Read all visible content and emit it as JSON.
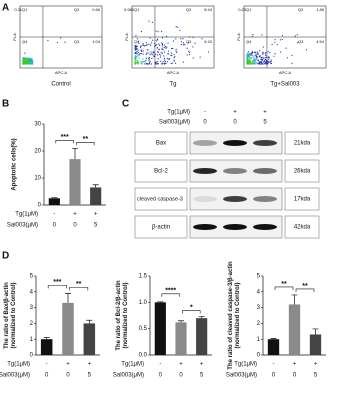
{
  "panel_labels": [
    "A",
    "B",
    "C",
    "D"
  ],
  "flow": {
    "x_label": "APC-A",
    "y_label": "PI-A",
    "plots": [
      {
        "caption": "Control",
        "quadrants": [
          {
            "name": "Q1",
            "value": "0.11"
          },
          {
            "name": "Q2",
            "value": "0.66"
          },
          {
            "name": "Q3",
            "value": "1.04"
          },
          {
            "name": "Q4"
          }
        ]
      },
      {
        "caption": "Tg",
        "quadrants": [
          {
            "name": "Q1",
            "value": "0.980"
          },
          {
            "name": "Q2",
            "value": "8.44"
          },
          {
            "name": "Q3",
            "value": "6.42"
          },
          {
            "name": "Q4"
          }
        ]
      },
      {
        "caption": "Tg+Sal003",
        "quadrants": [
          {
            "name": "Q1",
            "value": "0.23"
          },
          {
            "name": "Q2",
            "value": "1.86"
          },
          {
            "name": "Q3",
            "value": "4.54"
          },
          {
            "name": "Q4"
          }
        ]
      }
    ]
  },
  "blot": {
    "header_rows": [
      {
        "name": "Tg(1μM)",
        "labels": [
          "-",
          "+",
          "+"
        ]
      },
      {
        "name": "Sal003(μM)",
        "labels": [
          "0",
          "0",
          "5"
        ]
      }
    ],
    "bands": [
      {
        "name": "Bax",
        "size": "21kda"
      },
      {
        "name": "Bcl-2",
        "size": "26kda"
      },
      {
        "name": "cleaved caspase-3",
        "size": "17kda"
      },
      {
        "name": "β-actin",
        "size": "42kda"
      }
    ]
  },
  "chart_data": [
    {
      "type": "bar",
      "ylabel": [
        "Apoptotic cells(%)"
      ],
      "ylim": [
        0,
        30
      ],
      "yticks": [
        0,
        10,
        20,
        30
      ],
      "values": [
        2.5,
        17,
        6.5
      ],
      "errors": [
        0.2,
        4,
        1
      ],
      "colors": [
        "#111111",
        "#8a8a8a",
        "#444444"
      ],
      "group_rows": [
        {
          "name": "Tg(1μM)",
          "labels": [
            "-",
            "+",
            "+"
          ]
        },
        {
          "name": "Sal003(μM)",
          "labels": [
            "0",
            "0",
            "5"
          ]
        }
      ],
      "significance": [
        "***",
        "**"
      ]
    },
    {
      "type": "bar",
      "ylabel": [
        "The ratio of Bax/β-actin",
        "(normalized to Control)"
      ],
      "ylim": [
        0,
        5
      ],
      "yticks": [
        0,
        1,
        2,
        3,
        4,
        5
      ],
      "values": [
        1,
        3.3,
        2.0
      ],
      "errors": [
        0.1,
        0.6,
        0.2
      ],
      "colors": [
        "#111111",
        "#8a8a8a",
        "#444444"
      ],
      "group_rows": [
        {
          "name": "Tg(1μM)",
          "labels": [
            "-",
            "+",
            "+"
          ]
        },
        {
          "name": "Sal003(μM)",
          "labels": [
            "0",
            "0",
            "5"
          ]
        }
      ],
      "significance": [
        "***",
        "**"
      ]
    },
    {
      "type": "bar",
      "ylabel": [
        "The ratio of Bcl-2/β-actin",
        "(normalized to Control)"
      ],
      "ylim": [
        0,
        1.5
      ],
      "yticks": [
        {
          "value": 0,
          "label": "0.0"
        },
        0.5,
        {
          "value": 1,
          "label": "1.0"
        },
        1.5
      ],
      "values": [
        1.0,
        0.62,
        0.7
      ],
      "errors": [
        0.01,
        0.03,
        0.03
      ],
      "colors": [
        "#111111",
        "#8a8a8a",
        "#444444"
      ],
      "group_rows": [
        {
          "name": "Tg(1μM)",
          "labels": [
            "-",
            "+",
            "+"
          ]
        },
        {
          "name": "Sal003(μM)",
          "labels": [
            "0",
            "0",
            "5"
          ]
        }
      ],
      "significance": [
        "****",
        "*"
      ]
    },
    {
      "type": "bar",
      "ylabel": [
        "The ratio of cleaved caspase-3/β-actin",
        "(normalized to Control)"
      ],
      "ylim": [
        0,
        5
      ],
      "yticks": [
        0,
        1,
        2,
        3,
        4,
        5
      ],
      "values": [
        1,
        3.2,
        1.3
      ],
      "errors": [
        0.05,
        0.6,
        0.35
      ],
      "colors": [
        "#111111",
        "#8a8a8a",
        "#444444"
      ],
      "group_rows": [
        {
          "name": "Tg(1μM)",
          "labels": [
            "-",
            "+",
            "+"
          ]
        },
        {
          "name": "Sal003(μM)",
          "labels": [
            "0",
            "0",
            "5"
          ]
        }
      ],
      "significance": [
        "**",
        "**"
      ]
    }
  ]
}
